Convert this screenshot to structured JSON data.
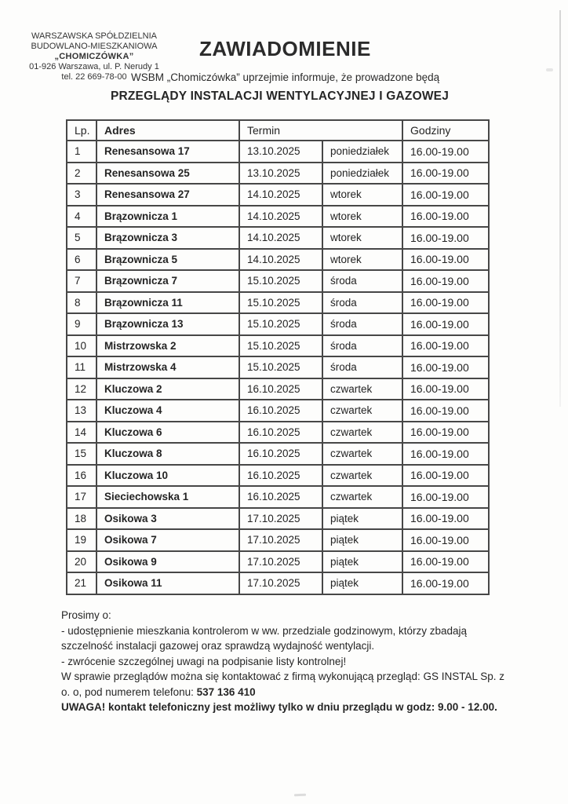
{
  "org": {
    "line1": "WARSZAWSKA SPÓŁDZIELNIA",
    "line2": "BUDOWLANO-MIESZKANIOWA",
    "line3": "„CHOMICZÓWKA”",
    "line4": "01-926 Warszawa, ul. P. Nerudy 1",
    "line5": "tel. 22 669-78-00"
  },
  "title": "ZAWIADOMIENIE",
  "intro": "WSBM „Chomiczówka” uprzejmie informuje, że prowadzone będą",
  "subtitle": "PRZEGLĄDY INSTALACJI WENTYLACYJNEJ I GAZOWEJ",
  "table": {
    "headers": {
      "lp": "Lp.",
      "adres": "Adres",
      "termin": "Termin",
      "godziny": "Godziny"
    },
    "rows": [
      {
        "lp": "1",
        "adres": "Renesansowa 17",
        "data": "13.10.2025",
        "dzien": "poniedziałek",
        "godziny": "16.00-19.00"
      },
      {
        "lp": "2",
        "adres": "Renesansowa 25",
        "data": "13.10.2025",
        "dzien": "poniedziałek",
        "godziny": "16.00-19.00"
      },
      {
        "lp": "3",
        "adres": "Renesansowa 27",
        "data": "14.10.2025",
        "dzien": "wtorek",
        "godziny": "16.00-19.00"
      },
      {
        "lp": "4",
        "adres": "Brązownicza 1",
        "data": "14.10.2025",
        "dzien": "wtorek",
        "godziny": "16.00-19.00"
      },
      {
        "lp": "5",
        "adres": "Brązownicza 3",
        "data": "14.10.2025",
        "dzien": "wtorek",
        "godziny": "16.00-19.00"
      },
      {
        "lp": "6",
        "adres": "Brązownicza 5",
        "data": "14.10.2025",
        "dzien": "wtorek",
        "godziny": "16.00-19.00"
      },
      {
        "lp": "7",
        "adres": "Brązownicza 7",
        "data": "15.10.2025",
        "dzien": "środa",
        "godziny": "16.00-19.00"
      },
      {
        "lp": "8",
        "adres": "Brązownicza 11",
        "data": "15.10.2025",
        "dzien": "środa",
        "godziny": "16.00-19.00"
      },
      {
        "lp": "9",
        "adres": "Brązownicza 13",
        "data": "15.10.2025",
        "dzien": "środa",
        "godziny": "16.00-19.00"
      },
      {
        "lp": "10",
        "adres": "Mistrzowska 2",
        "data": "15.10.2025",
        "dzien": "środa",
        "godziny": "16.00-19.00"
      },
      {
        "lp": "11",
        "adres": "Mistrzowska 4",
        "data": "15.10.2025",
        "dzien": "środa",
        "godziny": "16.00-19.00"
      },
      {
        "lp": "12",
        "adres": "Kluczowa 2",
        "data": "16.10.2025",
        "dzien": "czwartek",
        "godziny": "16.00-19.00"
      },
      {
        "lp": "13",
        "adres": "Kluczowa 4",
        "data": "16.10.2025",
        "dzien": "czwartek",
        "godziny": "16.00-19.00"
      },
      {
        "lp": "14",
        "adres": "Kluczowa 6",
        "data": "16.10.2025",
        "dzien": "czwartek",
        "godziny": "16.00-19.00"
      },
      {
        "lp": "15",
        "adres": "Kluczowa 8",
        "data": "16.10.2025",
        "dzien": "czwartek",
        "godziny": "16.00-19.00"
      },
      {
        "lp": "16",
        "adres": "Kluczowa 10",
        "data": "16.10.2025",
        "dzien": "czwartek",
        "godziny": "16.00-19.00"
      },
      {
        "lp": "17",
        "adres": "Sieciechowska 1",
        "data": "16.10.2025",
        "dzien": "czwartek",
        "godziny": "16.00-19.00"
      },
      {
        "lp": "18",
        "adres": "Osikowa 3",
        "data": "17.10.2025",
        "dzien": "piątek",
        "godziny": "16.00-19.00"
      },
      {
        "lp": "19",
        "adres": "Osikowa 7",
        "data": "17.10.2025",
        "dzien": "piątek",
        "godziny": "16.00-19.00"
      },
      {
        "lp": "20",
        "adres": "Osikowa 9",
        "data": "17.10.2025",
        "dzien": "piątek",
        "godziny": "16.00-19.00"
      },
      {
        "lp": "21",
        "adres": "Osikowa 11",
        "data": "17.10.2025",
        "dzien": "piątek",
        "godziny": "16.00-19.00"
      }
    ]
  },
  "footer": {
    "prosimy": "Prosimy o:",
    "item1": "- udostępnienie mieszkania kontrolerom w ww. przedziale godzinowym, którzy zbadają szczelność instalacji gazowej oraz sprawdzą wydajność wentylacji.",
    "item2": "- zwrócenie szczególnej uwagi na podpisanie listy kontrolnej!",
    "contact_prefix": "W sprawie przeglądów można się kontaktować z firmą wykonującą przegląd: GS INSTAL Sp. z o. o, pod numerem telefonu: ",
    "contact_phone": "537 136 410",
    "warning": "UWAGA! kontakt telefoniczny jest możliwy tylko w dniu przeglądu w godz: 9.00 - 12.00."
  }
}
